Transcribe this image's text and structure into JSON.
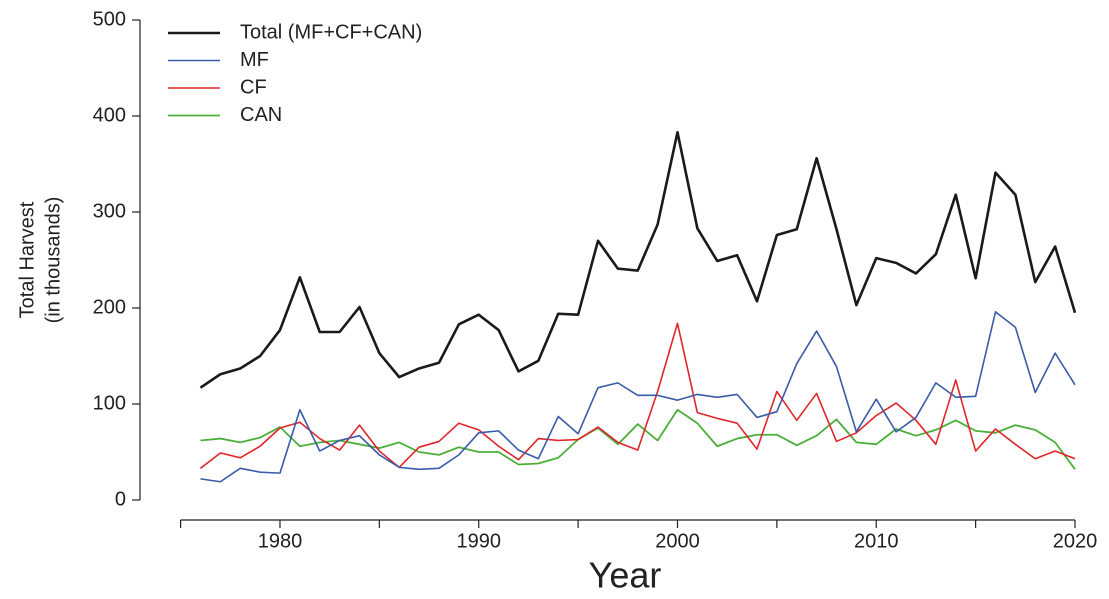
{
  "chart_data": {
    "type": "line",
    "xlabel": "Year",
    "ylabel": [
      "Total Harvest",
      "(in thousands)"
    ],
    "x": [
      1976,
      1977,
      1978,
      1979,
      1980,
      1981,
      1982,
      1983,
      1984,
      1985,
      1986,
      1987,
      1988,
      1989,
      1990,
      1991,
      1992,
      1993,
      1994,
      1995,
      1996,
      1997,
      1998,
      1999,
      2000,
      2001,
      2002,
      2003,
      2004,
      2005,
      2006,
      2007,
      2008,
      2009,
      2010,
      2011,
      2012,
      2013,
      2014,
      2015,
      2016,
      2017,
      2018,
      2019,
      2020
    ],
    "series": [
      {
        "name": "Total (MF+CF+CAN)",
        "color": "#1a1a1a",
        "width": 2.6,
        "values": [
          117,
          131,
          137,
          150,
          177,
          232,
          175,
          175,
          201,
          153,
          128,
          137,
          143,
          183,
          193,
          177,
          134,
          145,
          194,
          193,
          270,
          241,
          239,
          287,
          383,
          283,
          249,
          255,
          207,
          276,
          282,
          356,
          282,
          203,
          252,
          247,
          236,
          256,
          318,
          231,
          341,
          318,
          227,
          264,
          195
        ]
      },
      {
        "name": "MF",
        "color": "#3a5ba8",
        "width": 1.6,
        "values": [
          22,
          19,
          33,
          29,
          28,
          94,
          51,
          62,
          67,
          47,
          34,
          32,
          33,
          47,
          70,
          72,
          52,
          43,
          87,
          69,
          117,
          122,
          109,
          109,
          104,
          110,
          107,
          110,
          86,
          92,
          142,
          176,
          139,
          71,
          105,
          71,
          86,
          122,
          107,
          108,
          196,
          180,
          112,
          153,
          120
        ]
      },
      {
        "name": "CF",
        "color": "#e0262b",
        "width": 1.6,
        "values": [
          33,
          49,
          44,
          56,
          75,
          81,
          64,
          52,
          78,
          51,
          34,
          55,
          61,
          80,
          73,
          56,
          42,
          64,
          62,
          63,
          76,
          60,
          52,
          113,
          184,
          91,
          85,
          80,
          53,
          113,
          83,
          111,
          61,
          70,
          88,
          101,
          83,
          58,
          125,
          51,
          74,
          58,
          43,
          51,
          43
        ]
      },
      {
        "name": "CAN",
        "color": "#4caf3a",
        "width": 1.8,
        "values": [
          62,
          64,
          60,
          65,
          76,
          56,
          60,
          62,
          58,
          54,
          60,
          50,
          47,
          55,
          50,
          50,
          37,
          38,
          44,
          63,
          75,
          58,
          79,
          62,
          94,
          80,
          56,
          64,
          68,
          68,
          57,
          67,
          84,
          60,
          58,
          74,
          67,
          73,
          83,
          72,
          70,
          78,
          73,
          60,
          32
        ]
      }
    ],
    "xlim": [
      1975,
      2020
    ],
    "xticks": [
      1980,
      1990,
      2000,
      2010,
      2020
    ],
    "xminorticks": [
      1975,
      1985,
      1995,
      2005,
      2015
    ],
    "ylim": [
      0,
      500
    ],
    "yticks": [
      0,
      100,
      200,
      300,
      400,
      500
    ],
    "legend": "top-left"
  }
}
